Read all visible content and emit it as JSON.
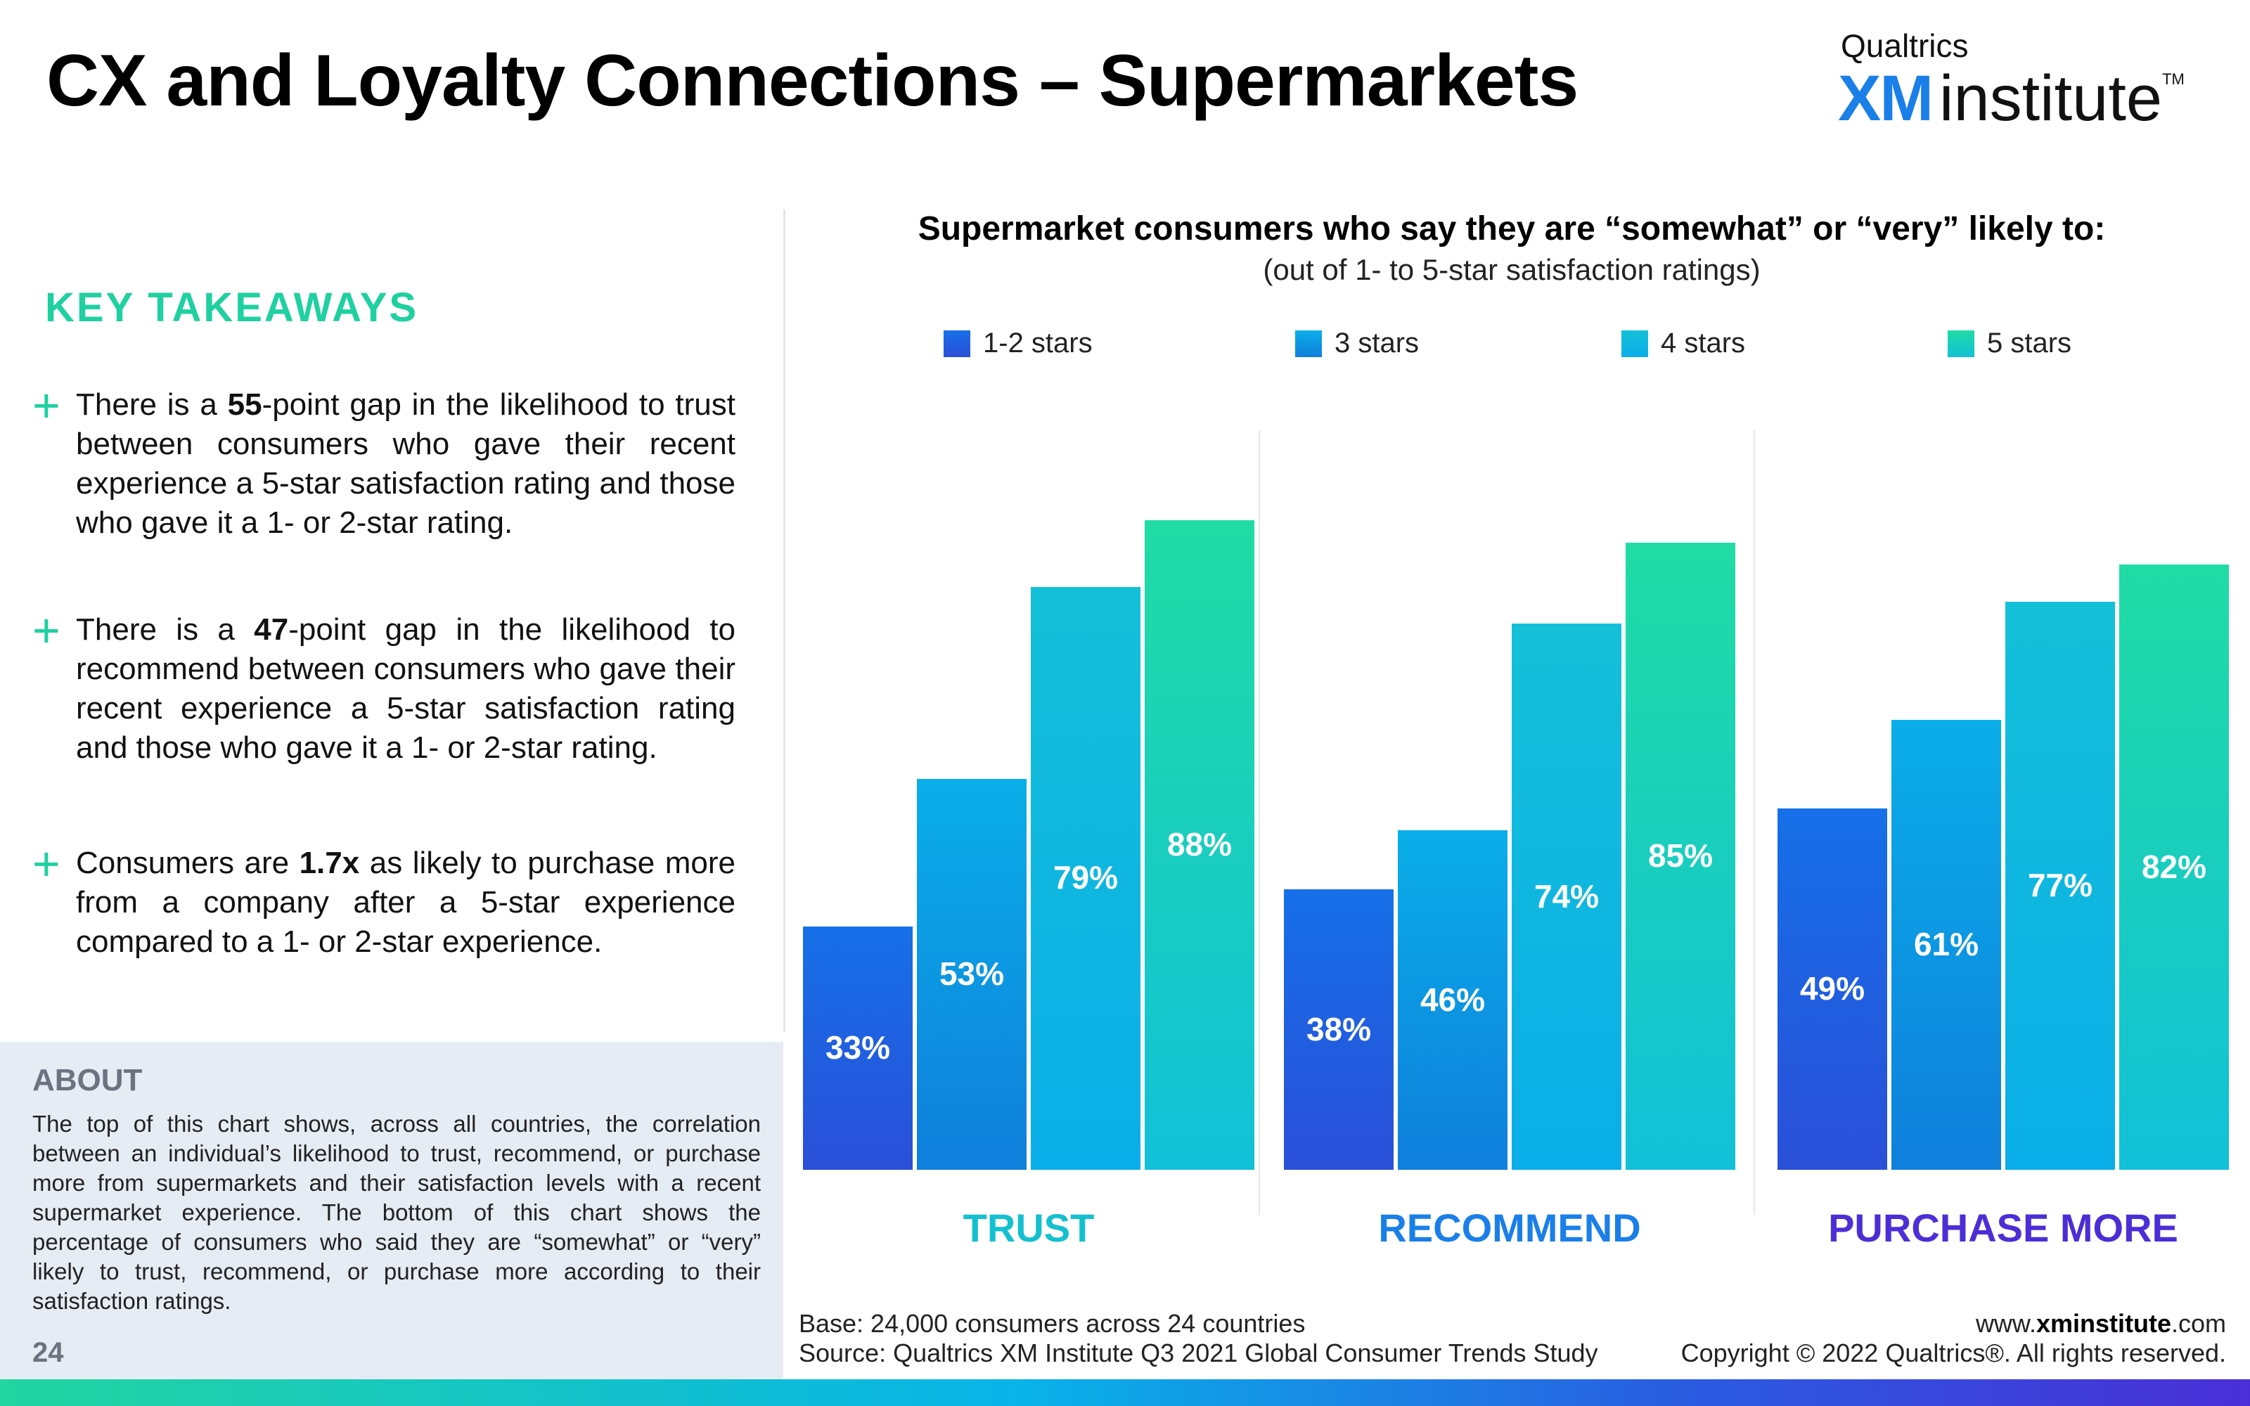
{
  "header": {
    "title": "CX and Loyalty Connections – Supermarkets",
    "logo": {
      "top": "Qualtrics",
      "xm": "XM",
      "institute": "institute",
      "tm": "TM"
    }
  },
  "takeaways": {
    "title": "KEY TAKEAWAYS",
    "items": [
      {
        "pre": "There is a ",
        "bold": "55",
        "post": "-point gap in the likelihood to trust between consumers who gave their recent experience a 5-star satisfaction rating and those who gave it a 1- or 2-star rating."
      },
      {
        "pre": "There is a ",
        "bold": "47",
        "post": "-point gap in the likelihood to recommend between consumers who gave their recent experience a 5-star satisfaction rating and those who gave it a 1- or 2-star rating."
      },
      {
        "pre": "Consumers are ",
        "bold": "1.7x",
        "post": " as likely to purchase more from a company after a 5-star experience compared to a 1- or 2-star experience."
      }
    ]
  },
  "about": {
    "title": "ABOUT",
    "text": "The top of this chart shows, across all countries, the correlation between an individual’s likelihood to trust, recommend, or purchase more from supermarkets and their satisfaction levels with a recent supermarket experience. The bottom of this chart shows the percentage of consumers who said they are “somewhat” or “very” likely to trust, recommend, or purchase more according to their satisfaction ratings.",
    "page_number": "24"
  },
  "footer": {
    "base": "Base: 24,000 consumers across 24 countries",
    "source": "Source: Qualtrics XM Institute Q3 2021 Global Consumer Trends Study",
    "url_prefix": "www.",
    "url_bold": "xminstitute",
    "url_suffix": ".com",
    "copyright": "Copyright © 2022 Qualtrics®. All rights reserved."
  },
  "colors": {
    "accent_green": "#1fd0a0",
    "trust": "#14c0d0",
    "recommend": "#1a7fe8",
    "purchase_more": "#4a2fd6"
  },
  "chart_data": {
    "type": "bar",
    "title": "Supermarket consumers who say they are “somewhat” or “very” likely to:",
    "subtitle": "(out of 1- to 5-star satisfaction ratings)",
    "categories": [
      "TRUST",
      "RECOMMEND",
      "PURCHASE MORE"
    ],
    "series": [
      {
        "name": "1-2 stars",
        "values": [
          33,
          38,
          49
        ],
        "color_top": "#1670e8",
        "color_bottom": "#2a4fd8"
      },
      {
        "name": "3 stars",
        "values": [
          53,
          46,
          61
        ],
        "color_top": "#0aaee8",
        "color_bottom": "#0f7fdc"
      },
      {
        "name": "4 stars",
        "values": [
          79,
          74,
          77
        ],
        "color_top": "#14c0d8",
        "color_bottom": "#0aaee8"
      },
      {
        "name": "5 stars",
        "values": [
          88,
          85,
          82
        ],
        "color_top": "#20dca4",
        "color_bottom": "#12c0d8"
      }
    ],
    "value_format": "%",
    "ylim": [
      0,
      100
    ],
    "legend_position": "top",
    "grid": false
  }
}
